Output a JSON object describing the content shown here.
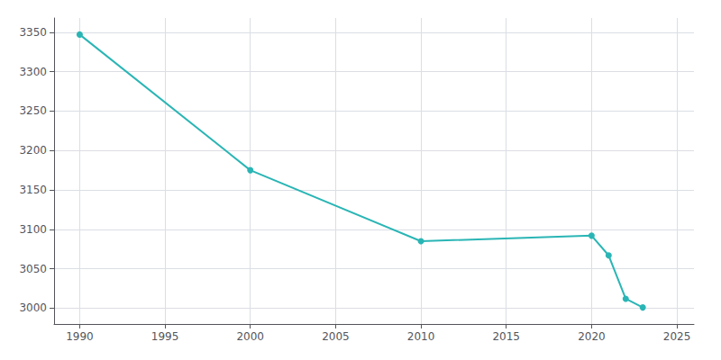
{
  "chart_data": {
    "type": "line",
    "x": [
      1990,
      2000,
      2010,
      2020,
      2021,
      2022,
      2023
    ],
    "values": [
      3347,
      3175,
      3085,
      3092,
      3067,
      3012,
      3001
    ],
    "color": "#2ab5b5",
    "marker": "circle",
    "xlim": [
      1988.5,
      2026
    ],
    "xticks": [
      1990,
      1995,
      2000,
      2005,
      2010,
      2015,
      2020,
      2025
    ],
    "ylim": [
      2980,
      3368
    ],
    "yticks": [
      3000,
      3050,
      3100,
      3150,
      3200,
      3250,
      3300,
      3350
    ],
    "grid": true
  }
}
